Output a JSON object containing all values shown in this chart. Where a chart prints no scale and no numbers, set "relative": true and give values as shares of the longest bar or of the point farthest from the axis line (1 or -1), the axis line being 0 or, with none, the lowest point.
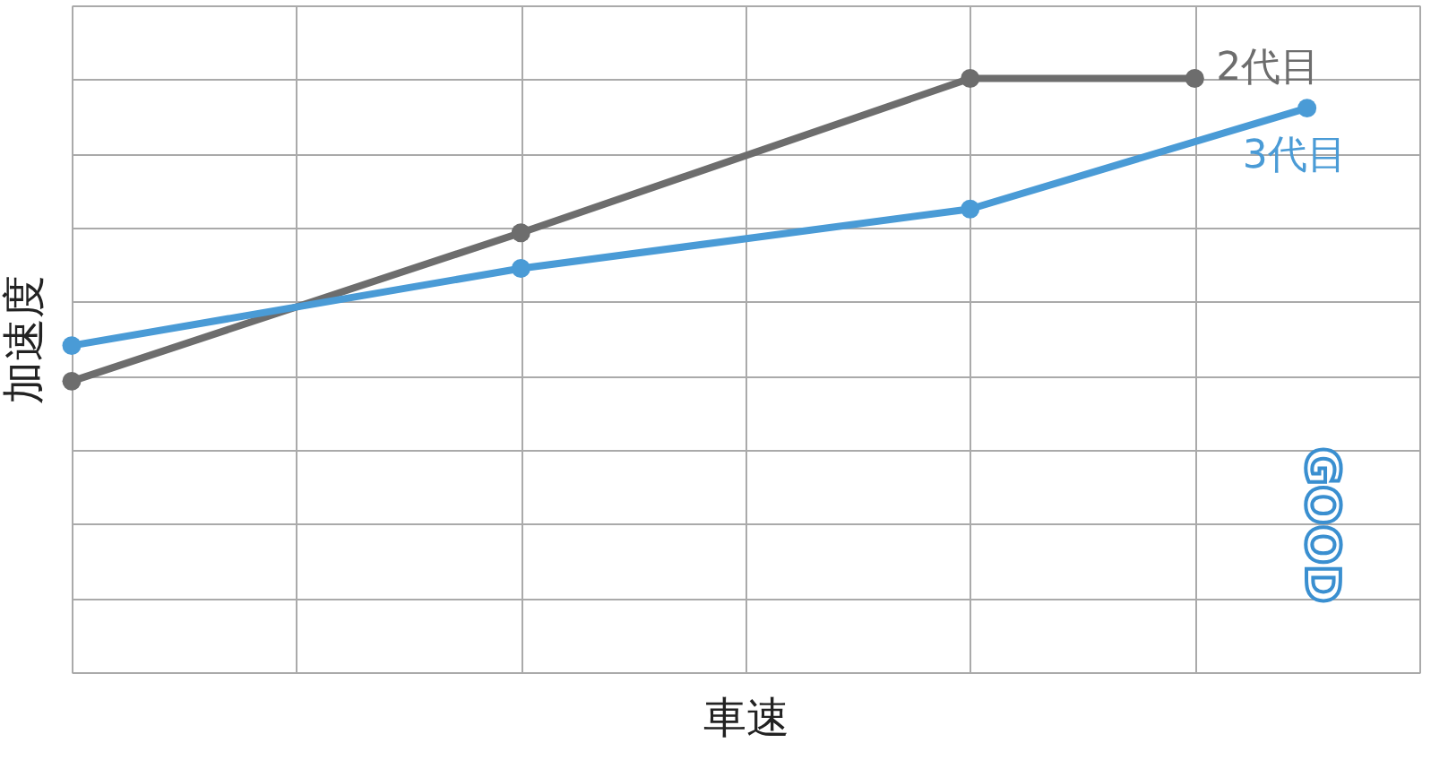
{
  "chart_data": {
    "type": "line",
    "relative": true,
    "xlabel": "車速",
    "ylabel": "加速度",
    "categories": [
      null,
      null,
      null,
      null,
      null,
      null,
      null,
      null,
      null,
      null,
      null,
      null,
      null
    ],
    "series": [
      {
        "name": "2代目",
        "color": "#6d6d6d",
        "values": [
          0.49,
          null,
          null,
          null,
          0.74,
          null,
          null,
          null,
          1,
          null,
          1,
          null,
          null
        ]
      },
      {
        "name": "3代目",
        "color": "#4a9bd6",
        "values": [
          0.55,
          null,
          null,
          null,
          0.68,
          null,
          null,
          null,
          0.78,
          null,
          null,
          0.95,
          null
        ]
      }
    ],
    "annotations": [
      "GOOD"
    ],
    "marker": "circle",
    "line_style": "solid",
    "grid": true,
    "legend": false,
    "tick_labels": false
  }
}
